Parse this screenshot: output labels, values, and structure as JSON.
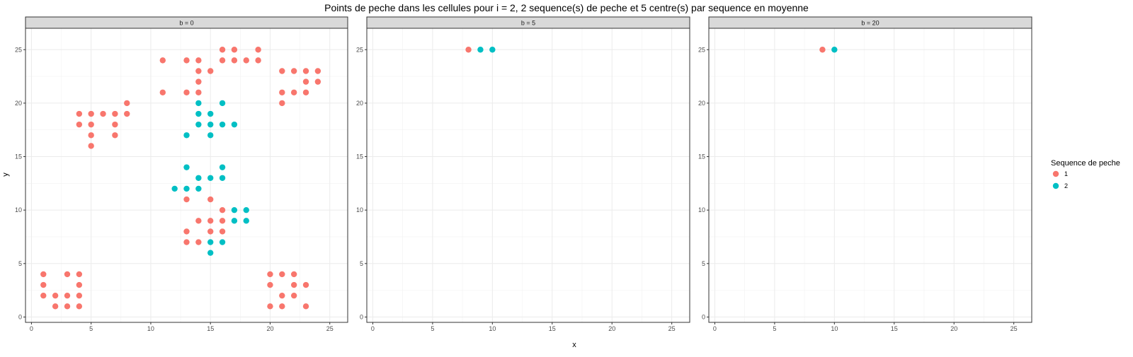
{
  "chart_data": {
    "type": "scatter",
    "title": "Points de peche dans les cellules pour i = 2, 2 sequence(s) de peche et 5 centre(s) par sequence en moyenne",
    "xlabel": "x",
    "ylabel": "y",
    "xlim": [
      -0.5,
      26.5
    ],
    "ylim": [
      -0.5,
      27
    ],
    "xticks": [
      0,
      5,
      10,
      15,
      20,
      25
    ],
    "yticks": [
      0,
      5,
      10,
      15,
      20,
      25
    ],
    "grid": true,
    "legend": {
      "title": "Sequence de peche",
      "position": "right",
      "items": [
        {
          "label": "1",
          "color": "#F8766D"
        },
        {
          "label": "2",
          "color": "#00BFC4"
        }
      ]
    },
    "facets": [
      {
        "label": "b = 0",
        "series": [
          {
            "name": "1",
            "color": "#F8766D",
            "points": [
              [
                16,
                25
              ],
              [
                17,
                25
              ],
              [
                19,
                25
              ],
              [
                11,
                24
              ],
              [
                13,
                24
              ],
              [
                14,
                24
              ],
              [
                16,
                24
              ],
              [
                17,
                24
              ],
              [
                18,
                24
              ],
              [
                19,
                24
              ],
              [
                14,
                23
              ],
              [
                15,
                23
              ],
              [
                21,
                23
              ],
              [
                22,
                23
              ],
              [
                23,
                23
              ],
              [
                24,
                23
              ],
              [
                14,
                22
              ],
              [
                23,
                22
              ],
              [
                24,
                22
              ],
              [
                11,
                21
              ],
              [
                13,
                21
              ],
              [
                14,
                21
              ],
              [
                21,
                21
              ],
              [
                22,
                21
              ],
              [
                23,
                21
              ],
              [
                8,
                20
              ],
              [
                21,
                20
              ],
              [
                4,
                19
              ],
              [
                5,
                19
              ],
              [
                6,
                19
              ],
              [
                7,
                19
              ],
              [
                8,
                19
              ],
              [
                4,
                18
              ],
              [
                5,
                18
              ],
              [
                7,
                18
              ],
              [
                5,
                17
              ],
              [
                7,
                17
              ],
              [
                5,
                16
              ],
              [
                13,
                11
              ],
              [
                15,
                11
              ],
              [
                16,
                10
              ],
              [
                14,
                9
              ],
              [
                15,
                9
              ],
              [
                16,
                9
              ],
              [
                13,
                8
              ],
              [
                15,
                8
              ],
              [
                16,
                8
              ],
              [
                13,
                7
              ],
              [
                14,
                7
              ],
              [
                1,
                4
              ],
              [
                3,
                4
              ],
              [
                4,
                4
              ],
              [
                20,
                4
              ],
              [
                21,
                4
              ],
              [
                22,
                4
              ],
              [
                1,
                3
              ],
              [
                4,
                3
              ],
              [
                20,
                3
              ],
              [
                22,
                3
              ],
              [
                23,
                3
              ],
              [
                1,
                2
              ],
              [
                2,
                2
              ],
              [
                3,
                2
              ],
              [
                4,
                2
              ],
              [
                21,
                2
              ],
              [
                22,
                2
              ],
              [
                2,
                1
              ],
              [
                3,
                1
              ],
              [
                4,
                1
              ],
              [
                20,
                1
              ],
              [
                21,
                1
              ],
              [
                23,
                1
              ]
            ]
          },
          {
            "name": "2",
            "color": "#00BFC4",
            "points": [
              [
                14,
                20
              ],
              [
                16,
                20
              ],
              [
                14,
                19
              ],
              [
                15,
                19
              ],
              [
                14,
                18
              ],
              [
                15,
                18
              ],
              [
                16,
                18
              ],
              [
                17,
                18
              ],
              [
                13,
                17
              ],
              [
                15,
                17
              ],
              [
                13,
                14
              ],
              [
                16,
                14
              ],
              [
                14,
                13
              ],
              [
                15,
                13
              ],
              [
                16,
                13
              ],
              [
                12,
                12
              ],
              [
                13,
                12
              ],
              [
                14,
                12
              ],
              [
                17,
                10
              ],
              [
                18,
                10
              ],
              [
                17,
                9
              ],
              [
                18,
                9
              ],
              [
                15,
                7
              ],
              [
                16,
                7
              ],
              [
                15,
                6
              ]
            ]
          }
        ]
      },
      {
        "label": "b = 5",
        "series": [
          {
            "name": "1",
            "color": "#F8766D",
            "points": [
              [
                8,
                25
              ]
            ]
          },
          {
            "name": "2",
            "color": "#00BFC4",
            "points": [
              [
                9,
                25
              ],
              [
                10,
                25
              ]
            ]
          }
        ]
      },
      {
        "label": "b = 20",
        "series": [
          {
            "name": "1",
            "color": "#F8766D",
            "points": [
              [
                9,
                25
              ]
            ]
          },
          {
            "name": "2",
            "color": "#00BFC4",
            "points": [
              [
                10,
                25
              ]
            ]
          }
        ]
      }
    ]
  }
}
